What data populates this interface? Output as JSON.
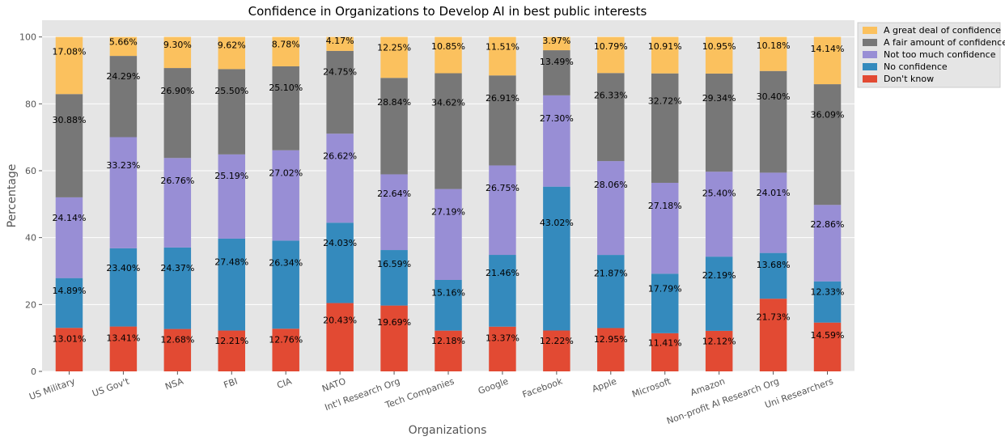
{
  "chart_data": {
    "type": "bar",
    "stacked": true,
    "title": "Confidence in Organizations to Develop AI in best public interests",
    "xlabel": "Organizations",
    "ylabel": "Percentage",
    "ylim": [
      0,
      105
    ],
    "yticks": [
      0,
      20,
      40,
      60,
      80,
      100
    ],
    "grid": true,
    "legend_position": "top-right (outside plot)",
    "categories": [
      "US Military",
      "US Gov't",
      "NSA",
      "FBI",
      "CIA",
      "NATO",
      "Int'l Research Org",
      "Tech Companies",
      "Google",
      "Facebook",
      "Apple",
      "Microsoft",
      "Amazon",
      "Non-profit AI Research Org",
      "Uni Researchers"
    ],
    "series": [
      {
        "name": "Don't know",
        "color": "#E24A33",
        "values": [
          13.01,
          13.41,
          12.68,
          12.21,
          12.76,
          20.43,
          19.69,
          12.18,
          13.37,
          12.22,
          12.95,
          11.41,
          12.12,
          21.73,
          14.59
        ],
        "labels": [
          "13.01%",
          "13.41%",
          "12.68%",
          "12.21%",
          "12.76%",
          "20.43%",
          "19.69%",
          "12.18%",
          "13.37%",
          "12.22%",
          "12.95%",
          "11.41%",
          "12.12%",
          "21.73%",
          "14.59%"
        ]
      },
      {
        "name": "No confidence",
        "color": "#348ABD",
        "values": [
          14.89,
          23.4,
          24.37,
          27.48,
          26.34,
          24.03,
          16.59,
          15.16,
          21.46,
          43.02,
          21.87,
          17.79,
          22.19,
          13.68,
          12.33
        ],
        "labels": [
          "14.89%",
          "23.40%",
          "24.37%",
          "27.48%",
          "26.34%",
          "24.03%",
          "16.59%",
          "15.16%",
          "21.46%",
          "43.02%",
          "21.87%",
          "17.79%",
          "22.19%",
          "13.68%",
          "12.33%"
        ]
      },
      {
        "name": "Not too much confidence",
        "color": "#988ED5",
        "values": [
          24.14,
          33.23,
          26.76,
          25.19,
          27.02,
          26.62,
          22.64,
          27.19,
          26.75,
          27.3,
          28.06,
          27.18,
          25.4,
          24.01,
          22.86
        ],
        "labels": [
          "24.14%",
          "33.23%",
          "26.76%",
          "25.19%",
          "27.02%",
          "26.62%",
          "22.64%",
          "27.19%",
          "26.75%",
          "27.30%",
          "28.06%",
          "27.18%",
          "25.40%",
          "24.01%",
          "22.86%"
        ]
      },
      {
        "name": "A fair amount of confidence",
        "color": "#777777",
        "values": [
          30.88,
          24.29,
          26.9,
          25.5,
          25.1,
          24.75,
          28.84,
          34.62,
          26.91,
          13.49,
          26.33,
          32.72,
          29.34,
          30.4,
          36.09
        ],
        "labels": [
          "30.88%",
          "24.29%",
          "26.90%",
          "25.50%",
          "25.10%",
          "24.75%",
          "28.84%",
          "34.62%",
          "26.91%",
          "13.49%",
          "26.33%",
          "32.72%",
          "29.34%",
          "30.40%",
          "36.09%"
        ]
      },
      {
        "name": "A great deal of confidence",
        "color": "#FBC15E",
        "values": [
          17.08,
          5.66,
          9.3,
          9.62,
          8.78,
          4.17,
          12.25,
          10.85,
          11.51,
          3.97,
          10.79,
          10.91,
          10.95,
          10.18,
          14.14
        ],
        "labels": [
          "17.08%",
          "5.66%",
          "9.30%",
          "9.62%",
          "8.78%",
          "4.17%",
          "12.25%",
          "10.85%",
          "11.51%",
          "3.97%",
          "10.79%",
          "10.91%",
          "10.95%",
          "10.18%",
          "14.14%"
        ]
      }
    ],
    "legend_order": [
      "A great deal of confidence",
      "A fair amount of confidence",
      "Not too much confidence",
      "No confidence",
      "Don't know"
    ],
    "colors": {
      "plot_background": "#E5E5E5",
      "grid": "#FFFFFF",
      "tick_text": "#555555"
    }
  }
}
